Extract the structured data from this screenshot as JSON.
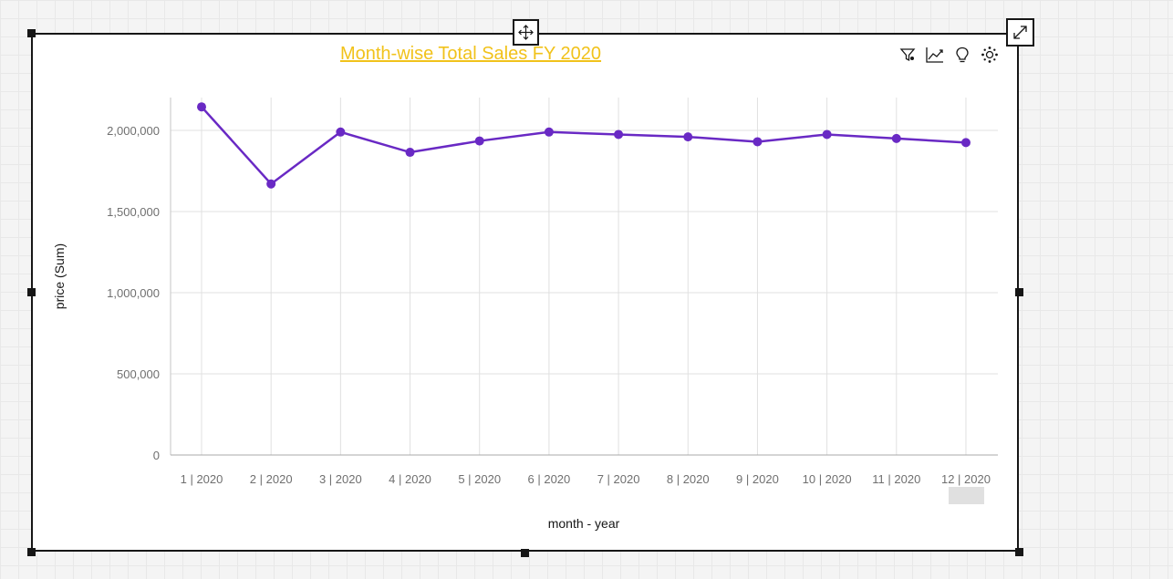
{
  "widget": {
    "title": "Month-wise Total Sales FY 2020",
    "title_color": "#f1c21b",
    "toolbar": [
      {
        "name": "filter-icon"
      },
      {
        "name": "line-chart-icon"
      },
      {
        "name": "lightbulb-icon"
      },
      {
        "name": "settings-icon"
      }
    ],
    "move_icon": "move-icon",
    "expand_icon": "expand-icon"
  },
  "chart_data": {
    "type": "line",
    "title": "Month-wise Total Sales FY 2020",
    "xlabel": "month - year",
    "ylabel": "price (Sum)",
    "categories": [
      "1 | 2020",
      "2 | 2020",
      "3 | 2020",
      "4 | 2020",
      "5 | 2020",
      "6 | 2020",
      "7 | 2020",
      "8 | 2020",
      "9 | 2020",
      "10 | 2020",
      "11 | 2020",
      "12 | 2020"
    ],
    "series": [
      {
        "values": [
          2145000,
          1670000,
          1990000,
          1865000,
          1935000,
          1990000,
          1975000,
          1960000,
          1930000,
          1975000,
          1950000,
          1925000
        ],
        "color": "#6929c4"
      }
    ],
    "ylim": [
      0,
      2200000
    ],
    "yticks": [
      0,
      500000,
      1000000,
      1500000,
      2000000
    ],
    "ytick_labels": [
      "0",
      "500,000",
      "1,000,000",
      "1,500,000",
      "2,000,000"
    ],
    "grid": true,
    "legend": "none"
  }
}
